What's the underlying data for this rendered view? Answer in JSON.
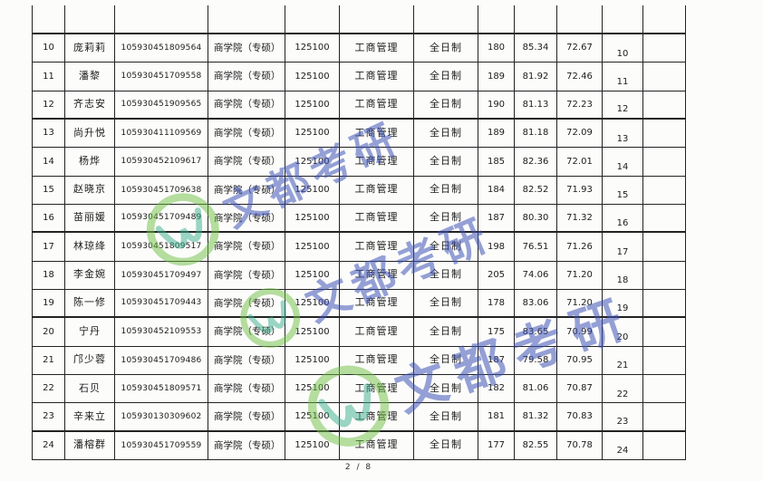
{
  "page": {
    "footer": "2 / 8"
  },
  "watermark": {
    "text": "文都考研",
    "text_color": "#3e54b6",
    "logo_green": "#6fbf44",
    "logo_teal": "#3aae8c"
  },
  "table": {
    "rows": [
      {
        "no": "10",
        "name": "庞莉莉",
        "id": "105930451809564",
        "college": "商学院（专硕）",
        "code": "125100",
        "major": "工商管理",
        "mode": "全日制",
        "score1": "180",
        "score2": "85.34",
        "total": "72.67",
        "no2": "10",
        "extra": ""
      },
      {
        "no": "11",
        "name": "潘黎",
        "id": "105930451709558",
        "college": "商学院（专硕）",
        "code": "125100",
        "major": "工商管理",
        "mode": "全日制",
        "score1": "189",
        "score2": "81.92",
        "total": "72.46",
        "no2": "11",
        "extra": ""
      },
      {
        "no": "12",
        "name": "齐志安",
        "id": "105930451909565",
        "college": "商学院（专硕）",
        "code": "125100",
        "major": "工商管理",
        "mode": "全日制",
        "score1": "190",
        "score2": "81.13",
        "total": "72.23",
        "no2": "12",
        "extra": ""
      },
      {
        "no": "13",
        "name": "尚升悦",
        "id": "105930411109569",
        "college": "商学院（专硕）",
        "code": "125100",
        "major": "工商管理",
        "mode": "全日制",
        "score1": "189",
        "score2": "81.18",
        "total": "72.09",
        "no2": "13",
        "extra": ""
      },
      {
        "no": "14",
        "name": "杨烨",
        "id": "105930452109617",
        "college": "商学院（专硕）",
        "code": "125100",
        "major": "工商管理",
        "mode": "全日制",
        "score1": "185",
        "score2": "82.36",
        "total": "72.01",
        "no2": "14",
        "extra": ""
      },
      {
        "no": "15",
        "name": "赵晓京",
        "id": "105930451709638",
        "college": "商学院（专硕）",
        "code": "125100",
        "major": "工商管理",
        "mode": "全日制",
        "score1": "184",
        "score2": "82.52",
        "total": "71.93",
        "no2": "15",
        "extra": ""
      },
      {
        "no": "16",
        "name": "苗丽媛",
        "id": "105930451709489",
        "college": "商学院（专硕）",
        "code": "125100",
        "major": "工商管理",
        "mode": "全日制",
        "score1": "187",
        "score2": "80.30",
        "total": "71.32",
        "no2": "16",
        "extra": ""
      },
      {
        "no": "17",
        "name": "林琼绛",
        "id": "105930451809517",
        "college": "商学院（专硕）",
        "code": "125100",
        "major": "工商管理",
        "mode": "全日制",
        "score1": "198",
        "score2": "76.51",
        "total": "71.26",
        "no2": "17",
        "extra": ""
      },
      {
        "no": "18",
        "name": "李金婉",
        "id": "105930451709497",
        "college": "商学院（专硕）",
        "code": "125100",
        "major": "工商管理",
        "mode": "全日制",
        "score1": "205",
        "score2": "74.06",
        "total": "71.20",
        "no2": "18",
        "extra": ""
      },
      {
        "no": "19",
        "name": "陈一修",
        "id": "105930451709443",
        "college": "商学院（专硕）",
        "code": "125100",
        "major": "工商管理",
        "mode": "全日制",
        "score1": "178",
        "score2": "83.06",
        "total": "71.20",
        "no2": "19",
        "extra": ""
      },
      {
        "no": "20",
        "name": "宁丹",
        "id": "105930452109553",
        "college": "商学院（专硕）",
        "code": "125100",
        "major": "工商管理",
        "mode": "全日制",
        "score1": "175",
        "score2": "83.65",
        "total": "70.99",
        "no2": "20",
        "extra": ""
      },
      {
        "no": "21",
        "name": "邝少蓉",
        "id": "105930451709486",
        "college": "商学院（专硕）",
        "code": "125100",
        "major": "工商管理",
        "mode": "全日制",
        "score1": "187",
        "score2": "79.58",
        "total": "70.95",
        "no2": "21",
        "extra": ""
      },
      {
        "no": "22",
        "name": "石贝",
        "id": "105930451809571",
        "college": "商学院（专硕）",
        "code": "125100",
        "major": "工商管理",
        "mode": "全日制",
        "score1": "182",
        "score2": "81.06",
        "total": "70.87",
        "no2": "22",
        "extra": ""
      },
      {
        "no": "23",
        "name": "辛来立",
        "id": "105930130309602",
        "college": "商学院（专硕）",
        "code": "125100",
        "major": "工商管理",
        "mode": "全日制",
        "score1": "181",
        "score2": "81.32",
        "total": "70.83",
        "no2": "23",
        "extra": ""
      },
      {
        "no": "24",
        "name": "潘榕群",
        "id": "105930451709559",
        "college": "商学院（专硕）",
        "code": "125100",
        "major": "工商管理",
        "mode": "全日制",
        "score1": "177",
        "score2": "82.55",
        "total": "70.78",
        "no2": "24",
        "extra": ""
      }
    ]
  }
}
